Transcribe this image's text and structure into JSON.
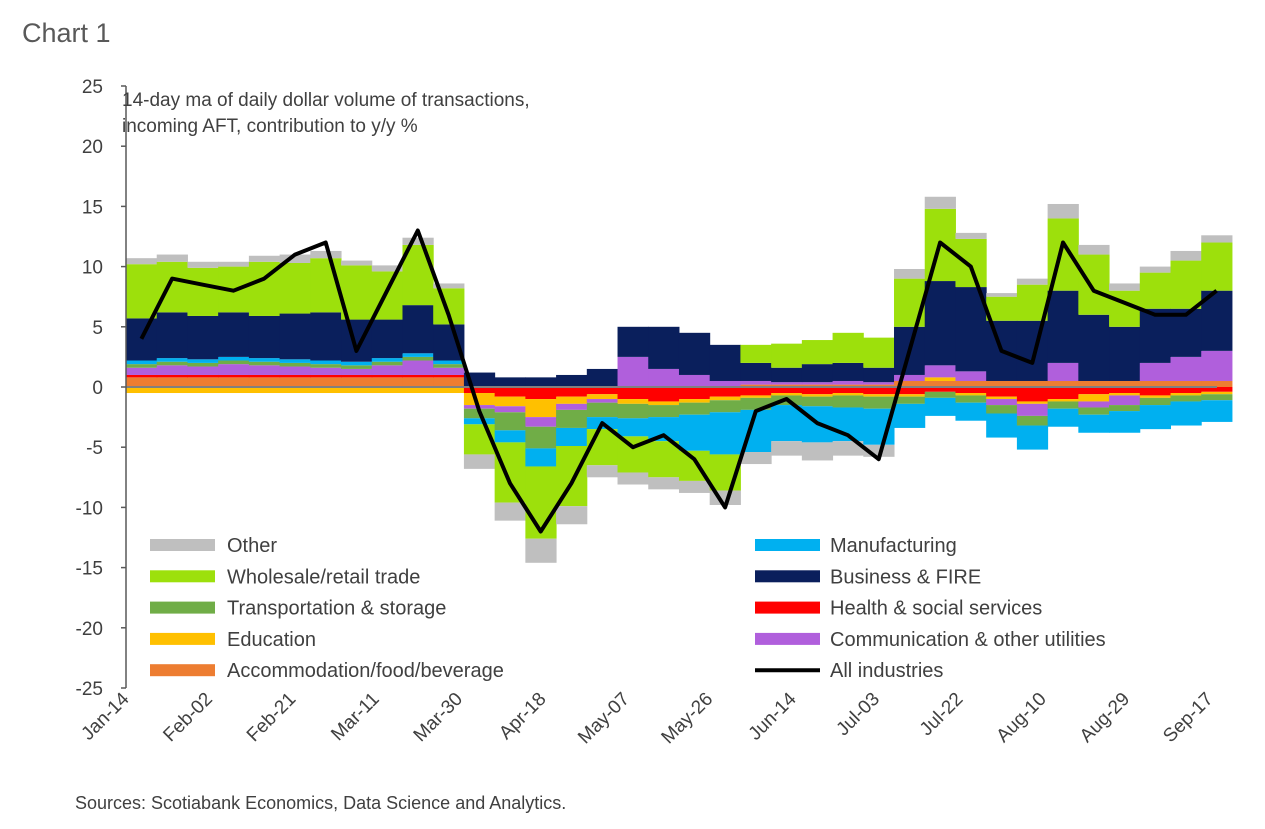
{
  "chart_data": {
    "type": "bar",
    "stacked": true,
    "title": "Chart 1",
    "subtitle_lines": [
      "14-day ma of daily dollar volume of transactions,",
      "incoming AFT, contribution to y/y %"
    ],
    "source": "Sources: Scotiabank Economics, Data Science and Analytics.",
    "ylim": [
      -25,
      25
    ],
    "yticks": [
      25,
      20,
      15,
      10,
      5,
      0,
      -5,
      -10,
      -15,
      -20,
      -25
    ],
    "xtick_labels": [
      "Jan-14",
      "Feb-02",
      "Feb-21",
      "Mar-11",
      "Mar-30",
      "Apr-18",
      "May-07",
      "May-26",
      "Jun-14",
      "Jul-03",
      "Jul-22",
      "Aug-10",
      "Aug-29",
      "Sep-17"
    ],
    "total_days": 247,
    "x_step_days": 7,
    "series": [
      {
        "name": "Accommodation/food/beverage",
        "color": "#ed7d31",
        "values": [
          0.8,
          0.8,
          0.8,
          0.8,
          0.8,
          0.8,
          0.8,
          0.8,
          0.8,
          0.8,
          0.8,
          0,
          0,
          0,
          0,
          0,
          0,
          0,
          0,
          0,
          0.2,
          0.2,
          0.2,
          0.2,
          0.2,
          0.5,
          0.5,
          0.5,
          0.5,
          0.5,
          0.5,
          0.5,
          0.5,
          0.5,
          0.5,
          0.5
        ]
      },
      {
        "name": "Health & social services",
        "color": "#ff0000",
        "values": [
          0.2,
          0.2,
          0.2,
          0.2,
          0.2,
          0.2,
          0.2,
          0.2,
          0.2,
          0.2,
          0.2,
          -0.5,
          -0.8,
          -1,
          -0.8,
          -0.6,
          -1,
          -1.2,
          -1,
          -0.8,
          -0.7,
          -0.5,
          -0.6,
          -0.5,
          -0.6,
          -0.6,
          -0.4,
          -0.5,
          -0.8,
          -1.2,
          -1,
          -0.6,
          -0.5,
          -0.7,
          -0.5,
          -0.4
        ]
      },
      {
        "name": "Education",
        "color": "#ffc000",
        "values": [
          -0.5,
          -0.5,
          -0.5,
          -0.5,
          -0.5,
          -0.5,
          -0.5,
          -0.5,
          -0.5,
          -0.5,
          -0.5,
          -1,
          -0.8,
          -1.5,
          -0.6,
          -0.4,
          -0.4,
          -0.3,
          -0.3,
          -0.3,
          -0.2,
          -0.2,
          -0.2,
          -0.2,
          -0.2,
          -0.2,
          0.3,
          -0.2,
          -0.2,
          -0.2,
          -0.2,
          -0.6,
          -0.2,
          -0.2,
          -0.2,
          -0.2
        ]
      },
      {
        "name": "Communication & other utilities",
        "color": "#b05fdc",
        "values": [
          0.6,
          0.8,
          0.7,
          0.9,
          0.8,
          0.7,
          0.6,
          0.5,
          0.8,
          1.2,
          0.6,
          -0.3,
          -0.5,
          -0.8,
          -0.5,
          -0.3,
          2.5,
          1.5,
          1,
          0.5,
          0.3,
          0.2,
          0.2,
          0.3,
          0.2,
          0.5,
          1,
          0.8,
          -0.5,
          -1,
          1.5,
          -0.5,
          -0.8,
          1.5,
          2,
          2.5
        ]
      },
      {
        "name": "Transportation & storage",
        "color": "#70ad47",
        "values": [
          0.3,
          0.3,
          0.3,
          0.3,
          0.3,
          0.3,
          0.3,
          0.3,
          0.3,
          0.3,
          0.3,
          -0.8,
          -1.5,
          -1.8,
          -1.5,
          -1.2,
          -1.2,
          -1,
          -1,
          -1,
          -1,
          -0.8,
          -0.8,
          -1,
          -1,
          -0.6,
          -0.5,
          -0.6,
          -0.7,
          -0.8,
          -0.6,
          -0.6,
          -0.5,
          -0.6,
          -0.5,
          -0.5
        ]
      },
      {
        "name": "Manufacturing",
        "color": "#00b0f0",
        "values": [
          0.3,
          0.3,
          0.3,
          0.3,
          0.3,
          0.3,
          0.3,
          0.3,
          0.3,
          0.3,
          0.3,
          -0.5,
          -1,
          -1.5,
          -1.5,
          -1,
          -1.5,
          -2,
          -3,
          -3.5,
          -3.5,
          -3,
          -3,
          -2.8,
          -3,
          -2,
          -1.5,
          -1.5,
          -2,
          -2,
          -1.5,
          -1.5,
          -1.8,
          -2,
          -2,
          -1.8
        ]
      },
      {
        "name": "Business & FIRE",
        "color": "#0a1f5c",
        "values": [
          3.5,
          3.8,
          3.6,
          3.7,
          3.5,
          3.8,
          4,
          3.5,
          3.2,
          4,
          3,
          1.2,
          0.8,
          0.8,
          1,
          1.5,
          2.5,
          3.5,
          3.5,
          3,
          1.5,
          1.2,
          1.5,
          1.5,
          1.2,
          4,
          7,
          7,
          5,
          5,
          6,
          5.5,
          4.5,
          4.5,
          4,
          5
        ]
      },
      {
        "name": "Wholesale/retail trade",
        "color": "#9de00c",
        "values": [
          4.5,
          4.2,
          4,
          3.8,
          4.5,
          4.2,
          4.5,
          4.5,
          4,
          5,
          3,
          -2.5,
          -5,
          -6,
          -5,
          -3,
          -3,
          -3,
          -2.5,
          -3,
          1.5,
          2,
          2,
          2.5,
          2.5,
          4,
          6,
          4,
          2,
          3,
          6,
          5,
          3,
          3,
          4,
          4
        ]
      },
      {
        "name": "Other",
        "color": "#bfbfbf",
        "values": [
          0.5,
          0.6,
          0.5,
          0.4,
          0.5,
          0.7,
          0.6,
          0.4,
          0.5,
          0.6,
          0.4,
          -1.2,
          -1.5,
          -2,
          -1.5,
          -1,
          -1,
          -1,
          -1,
          -1.2,
          -1,
          -1.2,
          -1.5,
          -1.2,
          -1,
          0.8,
          1,
          0.5,
          0.3,
          0.5,
          1.2,
          0.8,
          0.6,
          0.5,
          0.8,
          0.6
        ]
      }
    ],
    "line": {
      "name": "All industries",
      "color": "#000000",
      "values": [
        4,
        9,
        8.5,
        8,
        9,
        11,
        12,
        3,
        8,
        13,
        6,
        -2,
        -8,
        -12,
        -8,
        -3,
        -5,
        -4,
        -6,
        -10,
        -2,
        -1,
        -3,
        -4,
        -6,
        3,
        12,
        10,
        3,
        2,
        12,
        8,
        7,
        6,
        6,
        8
      ]
    },
    "legend": {
      "left": [
        "Other",
        "Wholesale/retail trade",
        "Transportation & storage",
        "Education",
        "Accommodation/food/beverage"
      ],
      "right": [
        "Manufacturing",
        "Business & FIRE",
        "Health & social services",
        "Communication & other utilities",
        "All industries"
      ]
    }
  }
}
